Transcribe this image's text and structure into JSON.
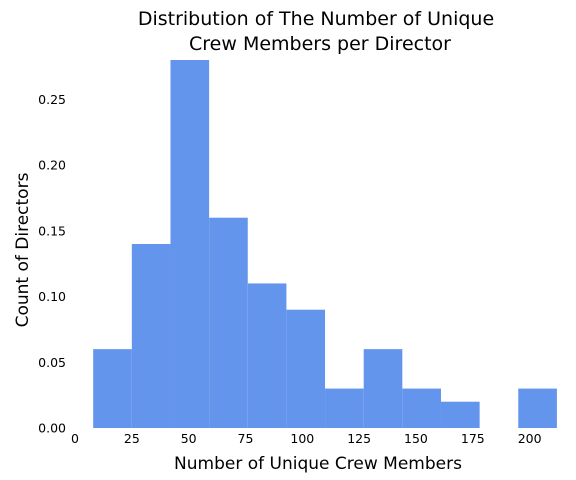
{
  "chart_data": {
    "type": "bar",
    "title_lines": [
      "Distribution of The Number of Unique",
      "Crew Members per Director"
    ],
    "xlabel": "Number of Unique Crew Members",
    "ylabel": "Count of Directors",
    "xlim": [
      0,
      205
    ],
    "ylim": [
      0,
      0.28
    ],
    "x_ticks": [
      0,
      25,
      50,
      75,
      100,
      125,
      150,
      175,
      200
    ],
    "x_tick_labels": [
      "0",
      "25",
      "50",
      "75",
      "100",
      "125",
      "150",
      "175",
      "200"
    ],
    "y_ticks": [
      0.0,
      0.05,
      0.1,
      0.15,
      0.2,
      0.25
    ],
    "y_tick_labels": [
      "0.00",
      "0.05",
      "0.10",
      "0.15",
      "0.20",
      "0.25"
    ],
    "bins": [
      {
        "x0": 8,
        "x1": 25,
        "value": 0.06
      },
      {
        "x0": 25,
        "x1": 42,
        "value": 0.14
      },
      {
        "x0": 42,
        "x1": 59,
        "value": 0.28
      },
      {
        "x0": 59,
        "x1": 76,
        "value": 0.16
      },
      {
        "x0": 76,
        "x1": 93,
        "value": 0.11
      },
      {
        "x0": 93,
        "x1": 110,
        "value": 0.09
      },
      {
        "x0": 110,
        "x1": 127,
        "value": 0.03
      },
      {
        "x0": 127,
        "x1": 144,
        "value": 0.06
      },
      {
        "x0": 144,
        "x1": 161,
        "value": 0.03
      },
      {
        "x0": 161,
        "x1": 178,
        "value": 0.02
      },
      {
        "x0": 178,
        "x1": 195,
        "value": 0.0
      },
      {
        "x0": 195,
        "x1": 212,
        "value": 0.03
      }
    ],
    "bar_color": "#6495ED",
    "grid": false,
    "legend": "none"
  }
}
